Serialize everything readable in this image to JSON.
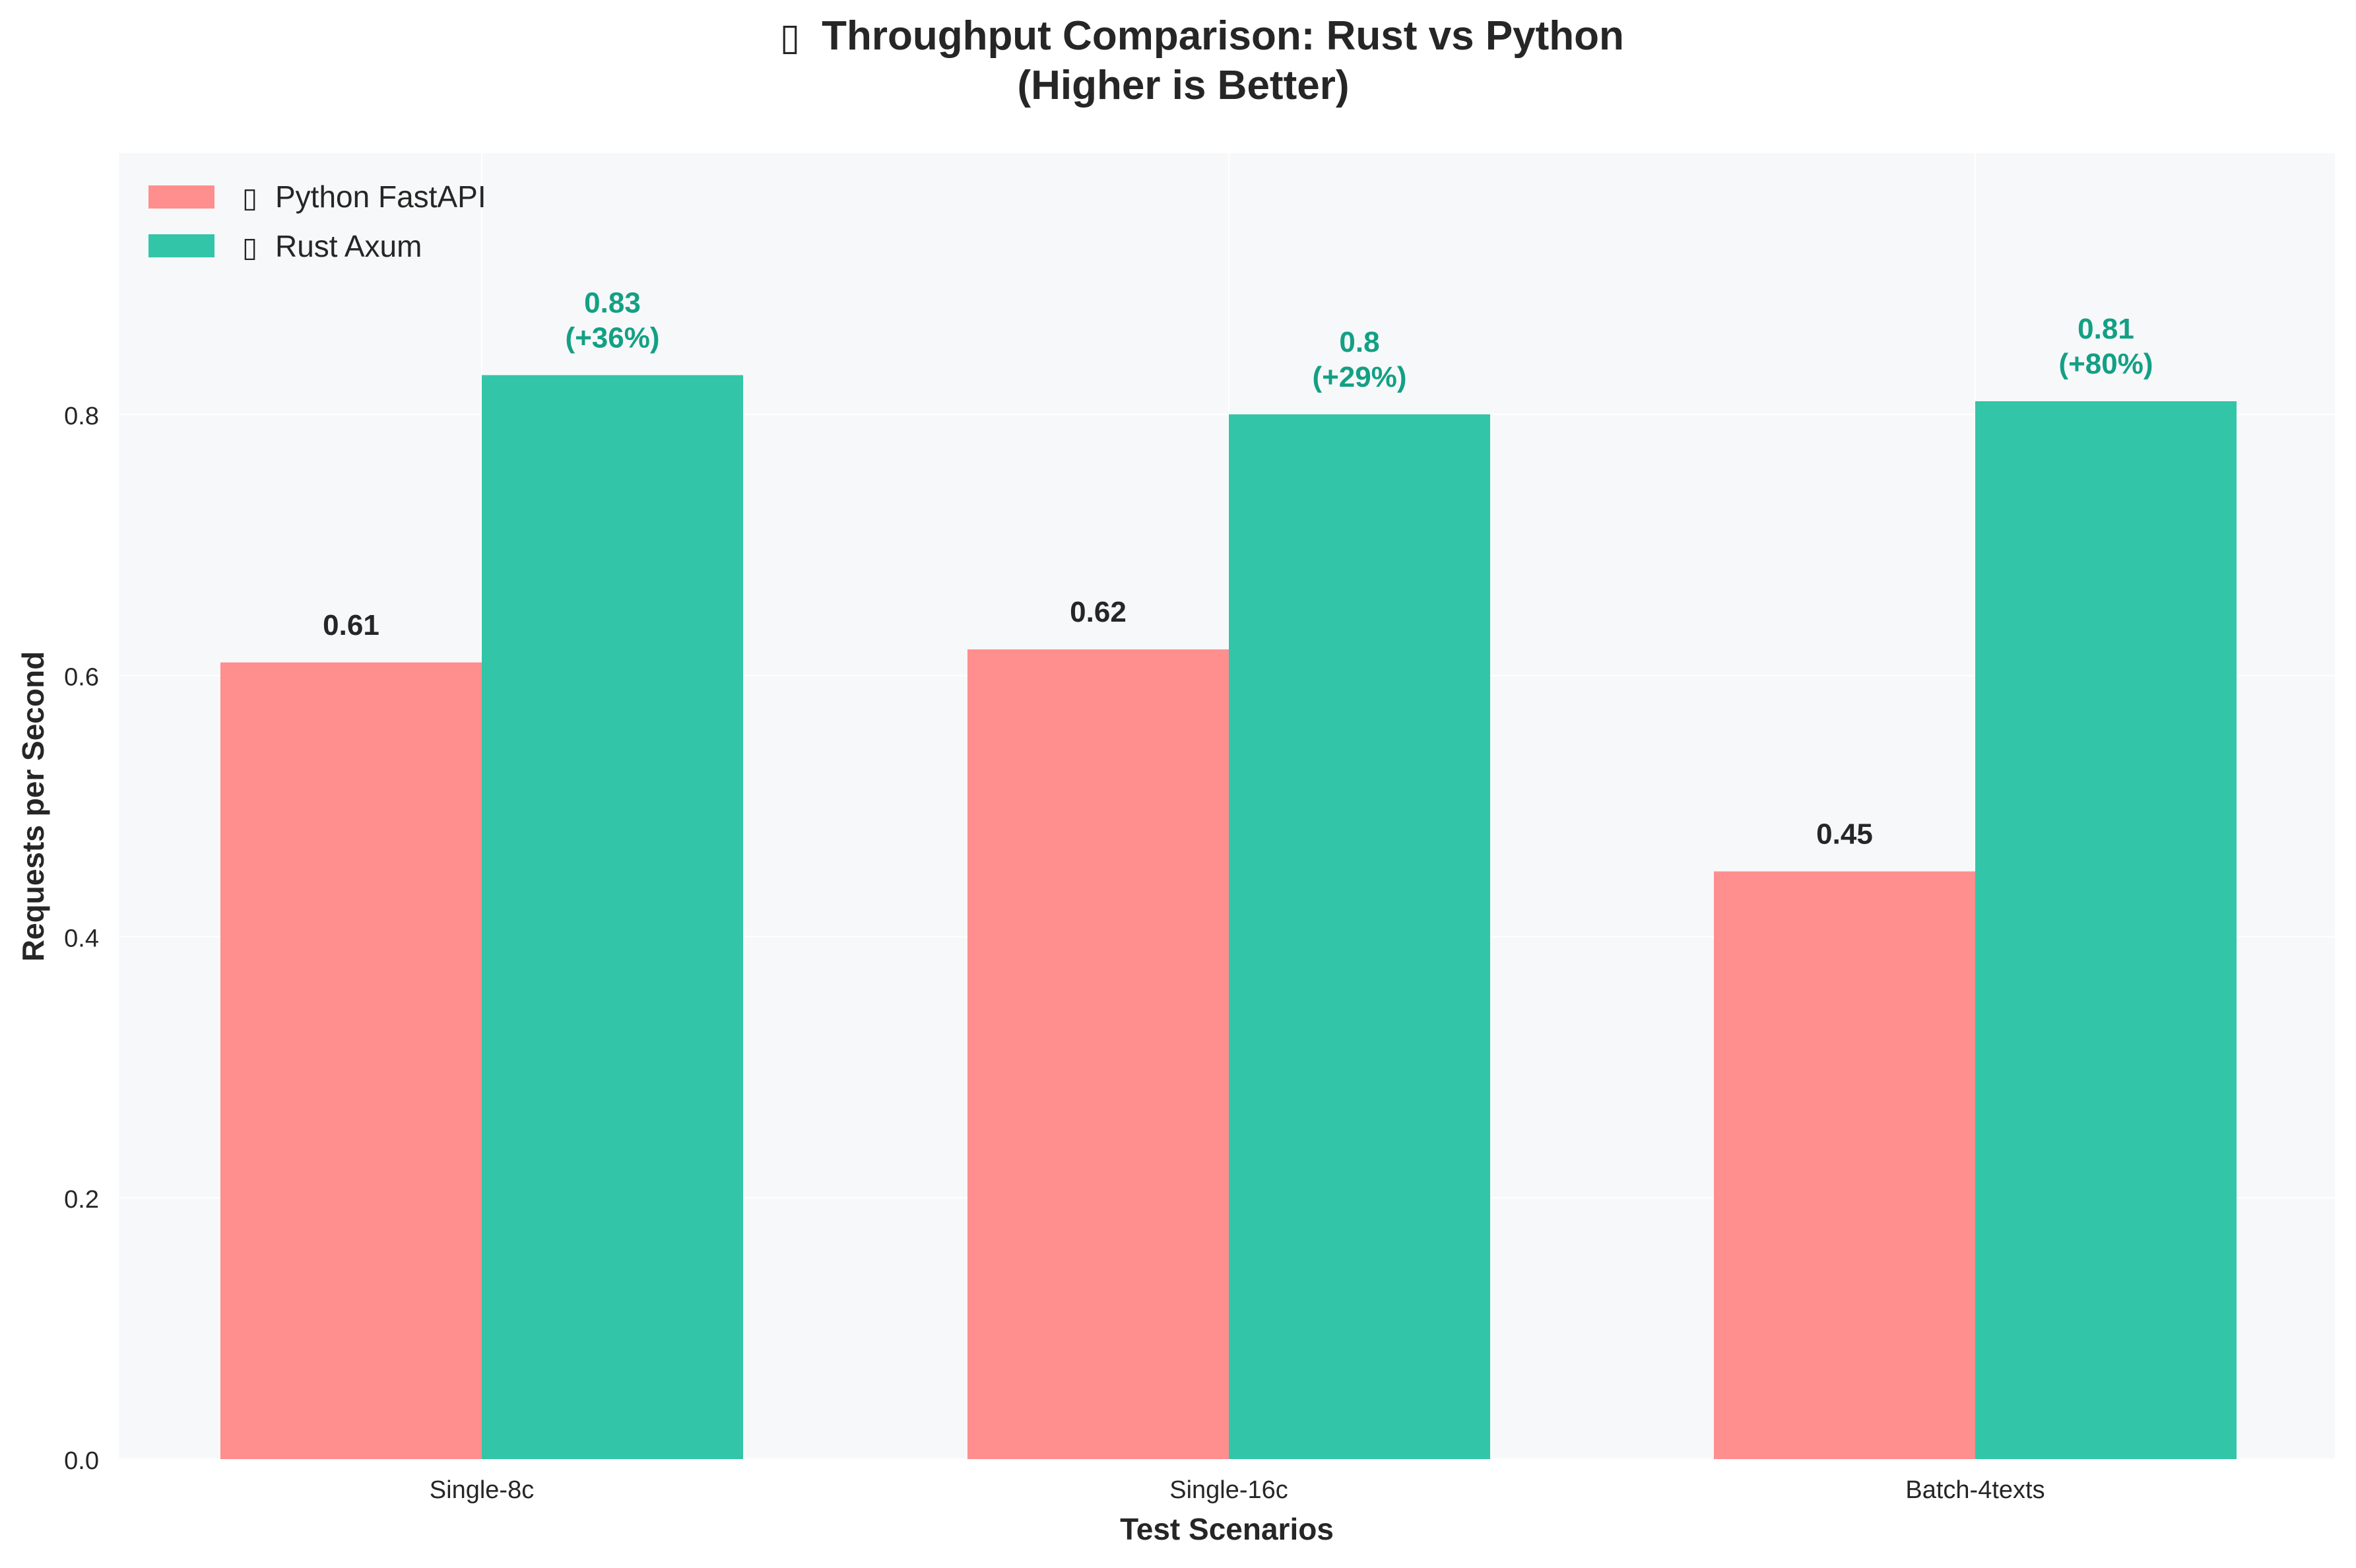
{
  "colors": {
    "python": "#FF8E8E",
    "rust": "#33C5A8",
    "rust_label": "#13A085",
    "text": "#262626",
    "plot_bg": "#F7F8FA",
    "grid": "#FFFFFF"
  },
  "chart_data": {
    "type": "bar",
    "title_line1": "Throughput Comparison: Rust vs Python",
    "title_line2": "(Higher is Better)",
    "title_icon": "chart-icon",
    "xlabel": "Test Scenarios",
    "ylabel": "Requests per Second",
    "categories": [
      "Single-8c",
      "Single-16c",
      "Batch-4texts"
    ],
    "ylim": [
      0,
      1.0
    ],
    "yticks": [
      "0.0",
      "0.2",
      "0.4",
      "0.6",
      "0.8"
    ],
    "grid": true,
    "legend_position": "top-left",
    "series": [
      {
        "name": "Python FastAPI",
        "icon": "python-icon",
        "values": [
          0.61,
          0.62,
          0.45
        ],
        "labels": [
          "0.61",
          "0.62",
          "0.45"
        ]
      },
      {
        "name": "Rust Axum",
        "icon": "rust-icon",
        "values": [
          0.83,
          0.8,
          0.81
        ],
        "labels": [
          "0.83",
          "0.8",
          "0.81"
        ],
        "sublabels": [
          "(+36%)",
          "(+29%)",
          "(+80%)"
        ]
      }
    ]
  }
}
